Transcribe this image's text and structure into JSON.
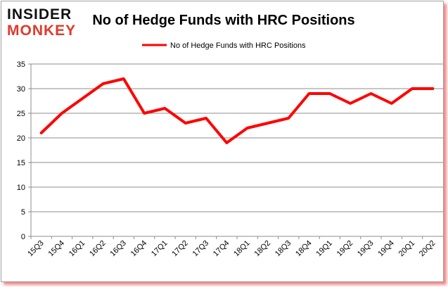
{
  "logo": {
    "line1": "INSIDER",
    "line2": "MONKEY"
  },
  "chart_data": {
    "type": "line",
    "title": "No of Hedge Funds with HRC Positions",
    "xlabel": "",
    "ylabel": "",
    "categories": [
      "15Q3",
      "15Q4",
      "16Q1",
      "16Q2",
      "16Q3",
      "16Q4",
      "17Q1",
      "17Q2",
      "17Q3",
      "17Q4",
      "18Q1",
      "18Q2",
      "18Q3",
      "18Q4",
      "19Q1",
      "19Q2",
      "19Q3",
      "19Q4",
      "20Q1",
      "20Q2"
    ],
    "series": [
      {
        "name": "No of Hedge Funds with HRC Positions",
        "color": "#ff0000",
        "values": [
          21,
          25,
          28,
          31,
          32,
          25,
          26,
          23,
          24,
          19,
          22,
          23,
          24,
          29,
          29,
          27,
          29,
          27,
          30,
          30
        ]
      }
    ],
    "ylim": [
      0,
      35
    ],
    "yticks": [
      0,
      5,
      10,
      15,
      20,
      25,
      30,
      35
    ],
    "grid": true,
    "legend": "top-center"
  }
}
